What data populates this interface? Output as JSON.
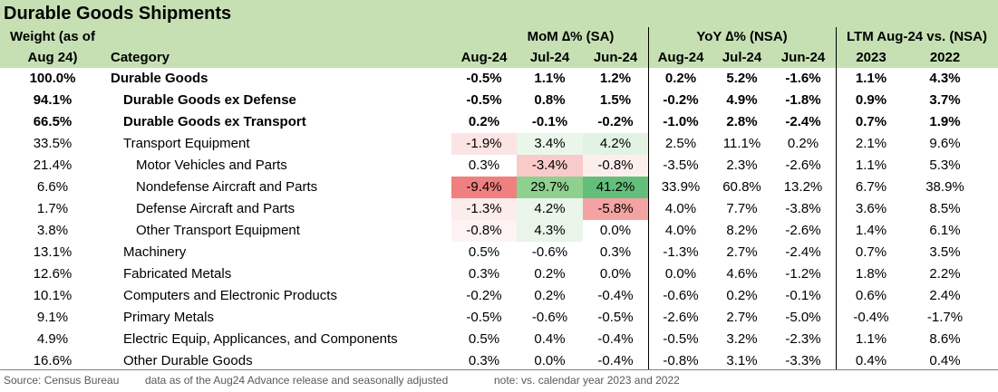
{
  "title": "Durable Goods Shipments",
  "header": {
    "weight_line1": "Weight (as of",
    "weight_line2": "Aug 24)",
    "category": "Category",
    "group_mom": "MoM ∆% (SA)",
    "group_yoy": "YoY ∆% (NSA)",
    "group_ltm": "LTM Aug-24 vs. (NSA)",
    "mom_cols": [
      "Aug-24",
      "Jul-24",
      "Jun-24"
    ],
    "yoy_cols": [
      "Aug-24",
      "Jul-24",
      "Jun-24"
    ],
    "ltm_cols": [
      "2023",
      "2022"
    ]
  },
  "rows": [
    {
      "weight": "100.0%",
      "category": "Durable Goods",
      "indent": 0,
      "bold": true,
      "mom": [
        "-0.5%",
        "1.1%",
        "1.2%"
      ],
      "yoy": [
        "0.2%",
        "5.2%",
        "-1.6%"
      ],
      "ltm": [
        "1.1%",
        "4.3%"
      ]
    },
    {
      "weight": "94.1%",
      "category": "Durable Goods ex Defense",
      "indent": 1,
      "bold": true,
      "mom": [
        "-0.5%",
        "0.8%",
        "1.5%"
      ],
      "yoy": [
        "-0.2%",
        "4.9%",
        "-1.8%"
      ],
      "ltm": [
        "0.9%",
        "3.7%"
      ]
    },
    {
      "weight": "66.5%",
      "category": "Durable Goods ex Transport",
      "indent": 1,
      "bold": true,
      "mom": [
        "0.2%",
        "-0.1%",
        "-0.2%"
      ],
      "yoy": [
        "-1.0%",
        "2.8%",
        "-2.4%"
      ],
      "ltm": [
        "0.7%",
        "1.9%"
      ]
    },
    {
      "weight": "33.5%",
      "category": "Transport Equipment",
      "indent": 1,
      "bold": false,
      "mom": [
        "-1.9%",
        "3.4%",
        "4.2%"
      ],
      "yoy": [
        "2.5%",
        "11.1%",
        "0.2%"
      ],
      "ltm": [
        "2.1%",
        "9.6%"
      ]
    },
    {
      "weight": "21.4%",
      "category": "Motor Vehicles and Parts",
      "indent": 2,
      "bold": false,
      "mom": [
        "0.3%",
        "-3.4%",
        "-0.8%"
      ],
      "yoy": [
        "-3.5%",
        "2.3%",
        "-2.6%"
      ],
      "ltm": [
        "1.1%",
        "5.3%"
      ]
    },
    {
      "weight": "6.6%",
      "category": "Nondefense Aircraft and Parts",
      "indent": 2,
      "bold": false,
      "mom": [
        "-9.4%",
        "29.7%",
        "41.2%"
      ],
      "yoy": [
        "33.9%",
        "60.8%",
        "13.2%"
      ],
      "ltm": [
        "6.7%",
        "38.9%"
      ]
    },
    {
      "weight": "1.7%",
      "category": "Defense Aircraft and Parts",
      "indent": 2,
      "bold": false,
      "mom": [
        "-1.3%",
        "4.2%",
        "-5.8%"
      ],
      "yoy": [
        "4.0%",
        "7.7%",
        "-3.8%"
      ],
      "ltm": [
        "3.6%",
        "8.5%"
      ]
    },
    {
      "weight": "3.8%",
      "category": "Other Transport Equipment",
      "indent": 2,
      "bold": false,
      "mom": [
        "-0.8%",
        "4.3%",
        "0.0%"
      ],
      "yoy": [
        "4.0%",
        "8.2%",
        "-2.6%"
      ],
      "ltm": [
        "1.4%",
        "6.1%"
      ]
    },
    {
      "weight": "13.1%",
      "category": "Machinery",
      "indent": 1,
      "bold": false,
      "mom": [
        "0.5%",
        "-0.6%",
        "0.3%"
      ],
      "yoy": [
        "-1.3%",
        "2.7%",
        "-2.4%"
      ],
      "ltm": [
        "0.7%",
        "3.5%"
      ]
    },
    {
      "weight": "12.6%",
      "category": "Fabricated Metals",
      "indent": 1,
      "bold": false,
      "mom": [
        "0.3%",
        "0.2%",
        "0.0%"
      ],
      "yoy": [
        "0.0%",
        "4.6%",
        "-1.2%"
      ],
      "ltm": [
        "1.8%",
        "2.2%"
      ]
    },
    {
      "weight": "10.1%",
      "category": "Computers and Electronic Products",
      "indent": 1,
      "bold": false,
      "mom": [
        "-0.2%",
        "0.2%",
        "-0.4%"
      ],
      "yoy": [
        "-0.6%",
        "0.2%",
        "-0.1%"
      ],
      "ltm": [
        "0.6%",
        "2.4%"
      ]
    },
    {
      "weight": "9.1%",
      "category": "Primary Metals",
      "indent": 1,
      "bold": false,
      "mom": [
        "-0.5%",
        "-0.6%",
        "-0.5%"
      ],
      "yoy": [
        "-2.6%",
        "2.7%",
        "-5.0%"
      ],
      "ltm": [
        "-0.4%",
        "-1.7%"
      ]
    },
    {
      "weight": "4.9%",
      "category": "Electric Equip, Applicances, and Components",
      "indent": 1,
      "bold": false,
      "mom": [
        "0.5%",
        "0.4%",
        "-0.4%"
      ],
      "yoy": [
        "-0.5%",
        "3.2%",
        "-2.3%"
      ],
      "ltm": [
        "1.1%",
        "8.6%"
      ]
    },
    {
      "weight": "16.6%",
      "category": "Other Durable Goods",
      "indent": 1,
      "bold": false,
      "mom": [
        "0.3%",
        "0.0%",
        "-0.4%"
      ],
      "yoy": [
        "-0.8%",
        "3.1%",
        "-3.3%"
      ],
      "ltm": [
        "0.4%",
        "0.4%"
      ]
    }
  ],
  "mom_heat": {
    "row_from": 3,
    "row_to": 7,
    "colors": [
      [
        "#fce4e4",
        "#eaf6ea",
        "#e3f3e3"
      ],
      [
        "#ffffff",
        "#f9caca",
        "#fdeeee"
      ],
      [
        "#f08080",
        "#8fd08f",
        "#63be7b"
      ],
      [
        "#fdecec",
        "#eaf6ea",
        "#f4a3a3"
      ],
      [
        "#fef3f3",
        "#e8f5e8",
        "#ffffff"
      ]
    ]
  },
  "colors": {
    "header_band": "#c6e0b4",
    "divider": "#000000",
    "footer_text": "#595959"
  },
  "footer": {
    "source": "Source: Census Bureau",
    "data_note": "data as of the Aug24 Advance release and seasonally adjusted",
    "comparison_note": "note: vs. calendar year 2023 and 2022"
  }
}
